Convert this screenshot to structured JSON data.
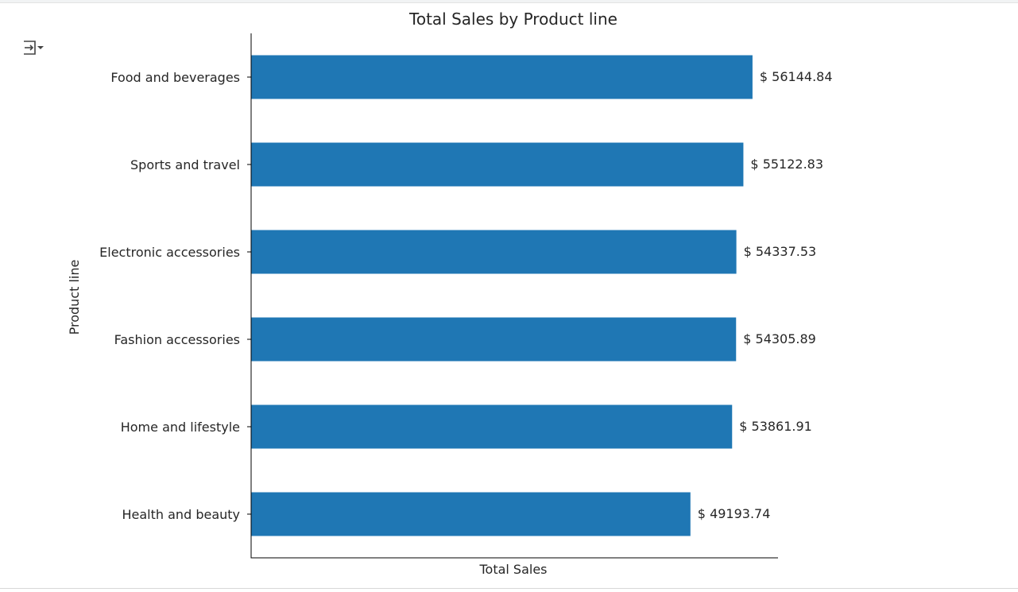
{
  "output_toggle": {
    "icon": "output-collapse-icon"
  },
  "chart_data": {
    "type": "bar",
    "orientation": "horizontal",
    "title": "Total Sales by Product line",
    "xlabel": "Total Sales",
    "ylabel": "Product line",
    "categories": [
      "Food and beverages",
      "Sports and travel",
      "Electronic accessories",
      "Fashion accessories",
      "Home and lifestyle",
      "Health and beauty"
    ],
    "values": [
      56144.84,
      55122.83,
      54337.53,
      54305.89,
      53861.91,
      49193.74
    ],
    "data_labels": [
      "$ 56144.84",
      "$ 55122.83",
      "$ 54337.53",
      "$ 54305.89",
      "$ 53861.91",
      "$ 49193.74"
    ],
    "xlim": [
      0,
      59000
    ],
    "bar_color": "#1f77b4",
    "grid": false,
    "x_ticks_visible": false
  }
}
